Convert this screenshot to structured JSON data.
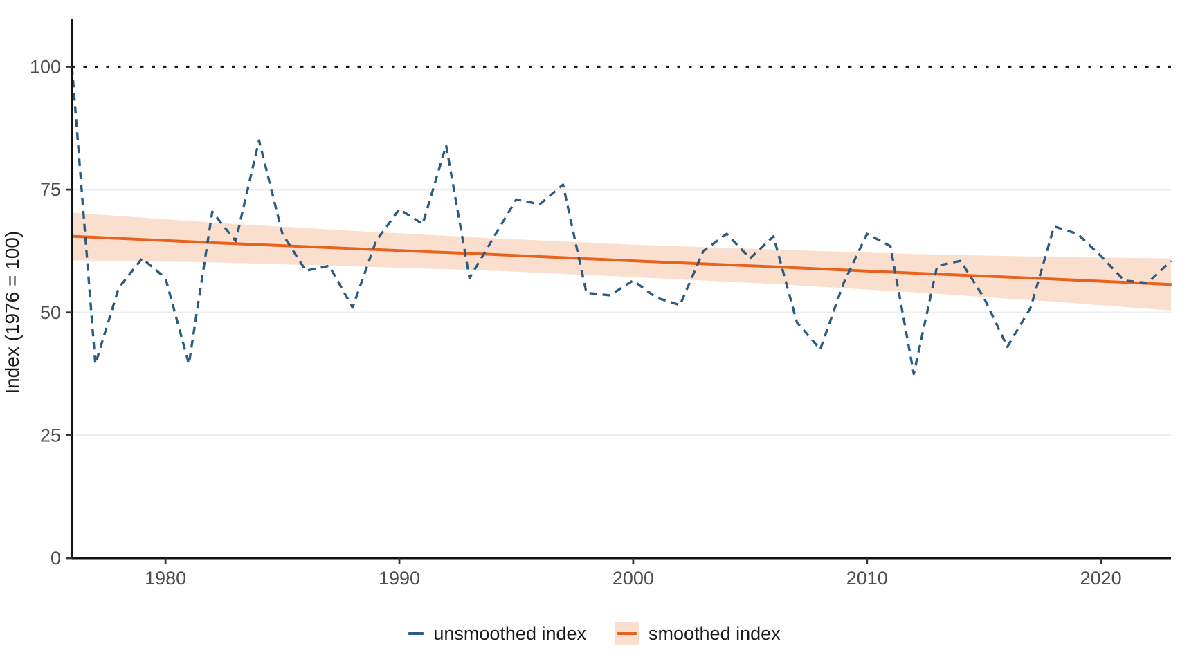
{
  "axes": {
    "y_title": "Index (1976 = 100)",
    "y_ticks": [
      0,
      25,
      50,
      75,
      100
    ],
    "x_ticks": [
      1980,
      1990,
      2000,
      2010,
      2020
    ],
    "x_range": [
      1976,
      2023
    ],
    "y_range": [
      0,
      110
    ],
    "grid_on": true,
    "tick_label_color": "#4D4D4D",
    "axis_line_color": "#111111",
    "grid_color": "#ECECEC"
  },
  "chart_data": {
    "type": "line",
    "title": "",
    "xlabel": "",
    "ylabel": "Index (1976 = 100)",
    "x": [
      1976,
      1977,
      1978,
      1979,
      1980,
      1981,
      1982,
      1983,
      1984,
      1985,
      1986,
      1987,
      1988,
      1989,
      1990,
      1991,
      1992,
      1993,
      1994,
      1995,
      1996,
      1997,
      1998,
      1999,
      2000,
      2001,
      2002,
      2003,
      2004,
      2005,
      2006,
      2007,
      2008,
      2009,
      2010,
      2011,
      2012,
      2013,
      2014,
      2015,
      2016,
      2017,
      2018,
      2019,
      2020,
      2021,
      2022,
      2023
    ],
    "series": [
      {
        "name": "unsmoothed index",
        "style": "dashed",
        "color": "#2B5C7F",
        "values": [
          100,
          39.5,
          55,
          61,
          57,
          39.5,
          70.5,
          64.5,
          85,
          66,
          58.5,
          59.5,
          51,
          64.5,
          71,
          68,
          84,
          57,
          65,
          73,
          72,
          76,
          54,
          53.5,
          56.5,
          53,
          51.5,
          62.5,
          66,
          61,
          65.5,
          48,
          42.5,
          56,
          66,
          63.5,
          37.5,
          59.5,
          60.5,
          53,
          43,
          51,
          67.5,
          66,
          61.5,
          56.5,
          56,
          60.5
        ]
      },
      {
        "name": "smoothed index",
        "style": "solid",
        "color": "#E8621D",
        "x": [
          1976,
          1982,
          1988,
          1994,
          2000,
          2006,
          2012,
          2018,
          2023
        ],
        "values": [
          65.5,
          64.2,
          63.0,
          61.8,
          60.5,
          59.3,
          58.0,
          56.8,
          55.7
        ]
      }
    ],
    "ribbon": {
      "name": "smoothed index confidence band",
      "fill": "#FBDFCE",
      "x": [
        1976,
        1982,
        1988,
        1994,
        2000,
        2006,
        2012,
        2018,
        2023
      ],
      "upper": [
        70.3,
        68.3,
        66.6,
        65.1,
        63.8,
        62.8,
        61.9,
        61.3,
        61.0
      ],
      "lower": [
        60.6,
        60.2,
        59.4,
        58.5,
        57.2,
        55.8,
        54.1,
        52.2,
        50.4
      ]
    },
    "reference_line": {
      "y": 100,
      "style": "dotted",
      "color": "#1A1A1A"
    },
    "legend_position": "bottom"
  },
  "legend": {
    "items": [
      {
        "label": "unsmoothed index",
        "key": "dashed-line",
        "color": "#2B5C7F"
      },
      {
        "label": "smoothed index",
        "key": "ribbon-line",
        "color": "#E8621D",
        "fill": "#FBDFCE"
      }
    ]
  }
}
